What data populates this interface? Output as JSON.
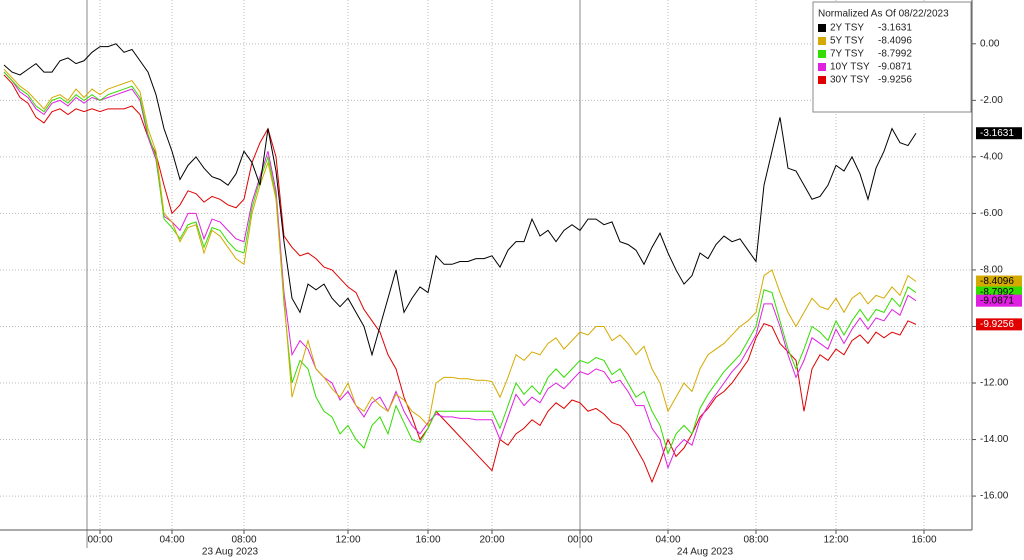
{
  "chart_data": {
    "type": "line",
    "legend_title": "Normalized As Of 08/22/2023",
    "day_labels": [
      "23 Aug 2023",
      "24 Aug 2023"
    ],
    "categories": [
      null,
      null,
      null,
      null,
      null,
      null,
      null,
      null,
      null,
      null,
      null,
      null,
      "00:00",
      null,
      null,
      null,
      null,
      null,
      null,
      null,
      null,
      "04:00",
      null,
      null,
      null,
      null,
      null,
      null,
      null,
      null,
      "08:00",
      null,
      null,
      null,
      null,
      null,
      null,
      null,
      null,
      null,
      null,
      null,
      null,
      "12:00",
      null,
      null,
      null,
      null,
      null,
      null,
      null,
      null,
      null,
      "16:00",
      null,
      null,
      null,
      null,
      null,
      null,
      null,
      "20:00",
      null,
      null,
      null,
      null,
      null,
      null,
      null,
      null,
      null,
      null,
      "00:00",
      null,
      null,
      null,
      null,
      null,
      null,
      null,
      null,
      null,
      null,
      "04:00",
      null,
      null,
      null,
      null,
      null,
      null,
      null,
      null,
      null,
      null,
      "08:00",
      null,
      null,
      null,
      null,
      null,
      null,
      null,
      null,
      null,
      "12:00",
      null,
      null,
      null,
      null,
      null,
      null,
      null,
      null,
      null,
      null,
      "16:00"
    ],
    "series": [
      {
        "name": "2Y TSY",
        "color": "#000000",
        "label_color": "#ffffff",
        "values": [
          -0.75,
          -1.0,
          -1.1,
          -0.9,
          -0.7,
          -1.0,
          -1.0,
          -0.6,
          -0.5,
          -0.7,
          -0.6,
          -0.3,
          -0.1,
          -0.1,
          0.0,
          -0.3,
          -0.2,
          -0.6,
          -1.0,
          -1.8,
          -3.0,
          -3.8,
          -4.8,
          -4.3,
          -4.0,
          -4.4,
          -4.7,
          -4.8,
          -5.0,
          -4.6,
          -3.8,
          -4.2,
          -5.0,
          -3.0,
          -4.5,
          -7.0,
          -9.0,
          -9.5,
          -8.5,
          -8.7,
          -8.5,
          -9.0,
          -9.3,
          -9.0,
          -9.5,
          -10.0,
          -11.0,
          -10.0,
          -9.0,
          -8.0,
          -9.5,
          -9.0,
          -8.6,
          -8.8,
          -7.5,
          -7.8,
          -7.8,
          -7.7,
          -7.7,
          -7.6,
          -7.6,
          -7.5,
          -7.9,
          -7.3,
          -7.0,
          -7.0,
          -6.2,
          -6.8,
          -6.6,
          -7.0,
          -6.6,
          -6.4,
          -6.6,
          -6.2,
          -6.2,
          -6.4,
          -6.3,
          -7.0,
          -7.1,
          -7.3,
          -7.8,
          -7.2,
          -6.7,
          -7.4,
          -8.0,
          -8.5,
          -8.2,
          -7.4,
          -7.6,
          -7.1,
          -6.8,
          -7.0,
          -6.9,
          -7.3,
          -7.7,
          -5.0,
          -3.8,
          -2.6,
          -4.4,
          -4.5,
          -5.0,
          -5.5,
          -5.4,
          -5.0,
          -4.3,
          -4.5,
          -4.0,
          -4.6,
          -5.5,
          -4.4,
          -3.8,
          -3.0,
          -3.5,
          -3.6,
          -3.1631,
          null
        ]
      },
      {
        "name": "5Y TSY",
        "color": "#d4aa00",
        "label_color": "#000000",
        "values": [
          -0.9,
          -1.2,
          -1.5,
          -1.7,
          -2.0,
          -2.3,
          -1.9,
          -1.8,
          -2.0,
          -1.6,
          -1.9,
          -1.6,
          -1.8,
          -1.6,
          -1.5,
          -1.4,
          -1.3,
          -1.7,
          -3.0,
          -3.8,
          -6.0,
          -6.3,
          -7.0,
          -6.5,
          -6.4,
          -7.4,
          -6.6,
          -6.8,
          -7.2,
          -7.6,
          -7.8,
          -6.0,
          -5.0,
          -4.2,
          -5.5,
          -9.0,
          -12.5,
          -11.5,
          -10.5,
          -11.5,
          -11.8,
          -12.2,
          -12.5,
          -12.0,
          -12.8,
          -13.0,
          -12.5,
          -12.8,
          -13.0,
          -12.4,
          -12.6,
          -13.0,
          -13.2,
          -13.5,
          -12.0,
          -11.8,
          -11.8,
          -11.85,
          -11.85,
          -11.9,
          -11.9,
          -11.95,
          -12.5,
          -11.8,
          -11.0,
          -11.2,
          -10.9,
          -11.0,
          -10.6,
          -10.4,
          -10.8,
          -10.5,
          -10.2,
          -10.3,
          -10.0,
          -10.0,
          -10.5,
          -10.3,
          -10.6,
          -11.0,
          -10.7,
          -11.5,
          -12.0,
          -13.0,
          -12.5,
          -12.0,
          -12.3,
          -11.5,
          -11.0,
          -10.8,
          -10.6,
          -10.3,
          -10.0,
          -9.8,
          -9.5,
          -8.2,
          -8.0,
          -8.8,
          -9.5,
          -10.0,
          -9.5,
          -9.0,
          -9.3,
          -9.4,
          -9.0,
          -9.5,
          -9.0,
          -8.8,
          -9.2,
          -8.9,
          -9.0,
          -8.6,
          -8.9,
          -8.2,
          -8.4096,
          null
        ]
      },
      {
        "name": "7Y TSY",
        "color": "#33dd00",
        "label_color": "#000000",
        "values": [
          -1.0,
          -1.3,
          -1.6,
          -1.8,
          -2.2,
          -2.4,
          -2.0,
          -1.9,
          -2.1,
          -1.8,
          -2.0,
          -1.8,
          -2.0,
          -1.8,
          -1.7,
          -1.6,
          -1.5,
          -1.9,
          -3.2,
          -4.0,
          -6.2,
          -6.5,
          -6.9,
          -6.4,
          -6.3,
          -7.2,
          -6.5,
          -6.6,
          -7.0,
          -7.3,
          -7.4,
          -5.8,
          -4.8,
          -4.0,
          -5.4,
          -9.2,
          -12.0,
          -11.2,
          -11.5,
          -12.5,
          -13.0,
          -13.2,
          -13.8,
          -13.5,
          -14.0,
          -14.3,
          -13.5,
          -13.2,
          -13.8,
          -12.8,
          -13.4,
          -14.0,
          -14.1,
          -13.6,
          -13.0,
          -13.0,
          -13.0,
          -13.0,
          -13.0,
          -13.0,
          -13.0,
          -13.0,
          -13.6,
          -12.8,
          -12.0,
          -12.4,
          -12.1,
          -12.4,
          -11.8,
          -11.5,
          -11.8,
          -11.5,
          -11.2,
          -11.3,
          -11.1,
          -11.2,
          -11.7,
          -11.5,
          -12.0,
          -12.5,
          -12.3,
          -13.0,
          -13.5,
          -14.5,
          -13.8,
          -13.5,
          -13.8,
          -12.9,
          -12.4,
          -12.0,
          -11.6,
          -11.3,
          -11.0,
          -10.5,
          -10.0,
          -8.7,
          -8.8,
          -9.8,
          -10.8,
          -11.5,
          -10.8,
          -10.0,
          -10.2,
          -10.5,
          -9.8,
          -10.3,
          -9.8,
          -9.4,
          -9.8,
          -9.4,
          -9.5,
          -9.0,
          -9.3,
          -8.6,
          -8.7992,
          null
        ]
      },
      {
        "name": "10Y TSY",
        "color": "#e020e0",
        "label_color": "#000000",
        "values": [
          -1.0,
          -1.3,
          -1.7,
          -1.9,
          -2.3,
          -2.5,
          -2.1,
          -2.0,
          -2.2,
          -1.9,
          -2.1,
          -1.9,
          -2.0,
          -1.9,
          -1.8,
          -1.7,
          -1.6,
          -2.0,
          -3.3,
          -4.1,
          -6.1,
          -6.3,
          -6.6,
          -6.0,
          -6.0,
          -6.9,
          -6.2,
          -6.3,
          -6.6,
          -6.9,
          -7.0,
          -5.6,
          -4.7,
          -3.8,
          -5.2,
          -8.8,
          -11.0,
          -10.5,
          -10.8,
          -11.5,
          -11.8,
          -12.0,
          -12.6,
          -12.3,
          -12.8,
          -13.2,
          -12.7,
          -12.5,
          -13.0,
          -12.3,
          -13.0,
          -13.5,
          -13.8,
          -13.4,
          -13.1,
          -13.2,
          -13.2,
          -13.25,
          -13.25,
          -13.3,
          -13.3,
          -13.3,
          -14.0,
          -13.2,
          -12.4,
          -12.8,
          -12.5,
          -12.7,
          -12.2,
          -12.0,
          -12.2,
          -11.9,
          -11.6,
          -11.7,
          -11.5,
          -11.6,
          -12.0,
          -11.9,
          -12.3,
          -12.8,
          -12.8,
          -13.6,
          -14.0,
          -15.0,
          -14.3,
          -14.0,
          -14.2,
          -13.3,
          -12.8,
          -12.4,
          -12.0,
          -11.6,
          -11.3,
          -10.8,
          -10.3,
          -9.2,
          -9.2,
          -10.0,
          -11.0,
          -11.8,
          -11.2,
          -10.4,
          -10.6,
          -10.8,
          -10.1,
          -10.6,
          -10.1,
          -9.7,
          -10.1,
          -9.7,
          -9.8,
          -9.4,
          -9.6,
          -8.9,
          -9.0871,
          null
        ]
      },
      {
        "name": "30Y TSY",
        "color": "#e00000",
        "label_color": "#ffffff",
        "values": [
          -1.1,
          -1.4,
          -1.9,
          -2.1,
          -2.6,
          -2.8,
          -2.4,
          -2.3,
          -2.5,
          -2.3,
          -2.4,
          -2.3,
          -2.4,
          -2.3,
          -2.3,
          -2.3,
          -2.2,
          -2.5,
          -3.3,
          -3.9,
          -5.0,
          -6.0,
          -5.7,
          -5.2,
          -5.3,
          -5.6,
          -5.4,
          -5.5,
          -5.7,
          -5.8,
          -5.5,
          -4.2,
          -3.5,
          -3.0,
          -4.0,
          -6.8,
          -7.2,
          -7.5,
          -7.4,
          -7.6,
          -7.9,
          -8.0,
          -8.3,
          -8.6,
          -8.8,
          -9.4,
          -9.8,
          -10.2,
          -11.0,
          -11.5,
          -12.5,
          -13.2,
          -14.0,
          -13.6,
          -13.0,
          -13.3,
          -13.6,
          -13.9,
          -14.2,
          -14.5,
          -14.8,
          -15.1,
          -14.0,
          -14.2,
          -13.8,
          -13.6,
          -13.3,
          -13.5,
          -13.0,
          -12.7,
          -12.9,
          -12.6,
          -12.7,
          -13.0,
          -12.9,
          -13.1,
          -13.4,
          -13.5,
          -13.8,
          -14.3,
          -14.8,
          -15.5,
          -14.8,
          -14.0,
          -14.6,
          -14.3,
          -13.8,
          -13.2,
          -12.9,
          -12.5,
          -12.3,
          -12.0,
          -11.6,
          -11.2,
          -10.4,
          -9.9,
          -10.0,
          -10.6,
          -10.9,
          -11.2,
          -13.0,
          -11.5,
          -11.0,
          -11.2,
          -10.8,
          -11.0,
          -10.5,
          -10.3,
          -10.6,
          -10.2,
          -10.4,
          -10.2,
          -10.3,
          -9.8,
          -9.9256,
          null
        ]
      }
    ],
    "ylim": [
      -17.2,
      1.55
    ],
    "yticks": [
      {
        "value": 0,
        "label": "0.00"
      },
      {
        "value": -2,
        "label": "-2.00"
      },
      {
        "value": -4,
        "label": "-4.00"
      },
      {
        "value": -6,
        "label": "-6.00"
      },
      {
        "value": -8,
        "label": "-8.00"
      },
      {
        "value": -10,
        "label": "-10.00"
      },
      {
        "value": -12,
        "label": "-12.00"
      },
      {
        "value": -14,
        "label": "-14.00"
      },
      {
        "value": -16,
        "label": "-16.00"
      }
    ],
    "grid": true
  }
}
